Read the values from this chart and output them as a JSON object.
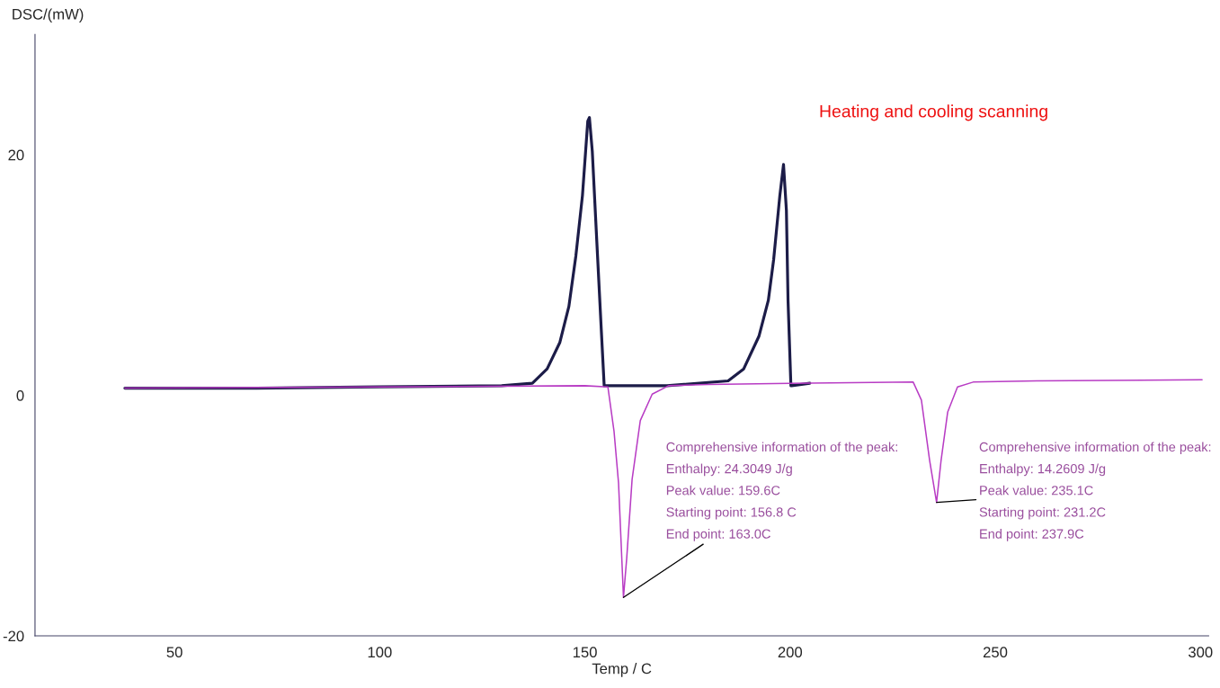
{
  "chart_data": {
    "type": "line",
    "title": "Heating and cooling scanning",
    "xlabel": "Temp / C",
    "ylabel": "DSC/(mW)",
    "xlim": [
      16,
      302
    ],
    "ylim": [
      -20,
      30
    ],
    "xticks": [
      50,
      100,
      150,
      200,
      250,
      300
    ],
    "yticks": [
      -20,
      0,
      20
    ],
    "grid": false,
    "legend": false,
    "marker": "none",
    "line_style": "solid",
    "series": [
      {
        "color": "#1c1c48",
        "x": [
          37.9,
          70,
          100,
          129.7,
          137.2,
          140.8,
          143.9,
          146.1,
          147.8,
          149.4,
          150.7,
          151.1,
          151.8,
          152.9,
          154.0,
          154.7,
          170,
          184.9,
          188.7,
          192.4,
          194.7,
          196.0,
          197.5,
          198.4,
          199.1,
          199.5,
          200.2,
          200.4,
          204.8
        ],
        "values": [
          0.6,
          0.6,
          0.7,
          0.8,
          1.0,
          2.2,
          4.4,
          7.4,
          11.6,
          16.6,
          22.8,
          23.1,
          20.3,
          12.8,
          5.4,
          0.8,
          0.8,
          1.2,
          2.2,
          4.9,
          7.9,
          11.3,
          16.6,
          19.2,
          15.4,
          7.9,
          0.8,
          0.8,
          1.0
        ]
      },
      {
        "color": "#b83cc4",
        "x": [
          37.9,
          100,
          150,
          155.6,
          157.1,
          158.2,
          159.4,
          160.2,
          161.5,
          163.5,
          166.4,
          170.4,
          180,
          200,
          230.0,
          232.0,
          234.0,
          235.7,
          236.8,
          238.4,
          240.8,
          244.6,
          260,
          300.4
        ],
        "values": [
          0.6,
          0.7,
          0.8,
          0.7,
          -3.0,
          -7.3,
          -16.8,
          -13.5,
          -7.0,
          -2.1,
          0.1,
          0.8,
          0.9,
          1.0,
          1.1,
          -0.4,
          -5.4,
          -8.9,
          -5.4,
          -1.4,
          0.7,
          1.1,
          1.2,
          1.3
        ]
      }
    ],
    "annotations": [
      {
        "text": "Comprehensive information of the peak:\nEnthalpy: 24.3049 J/g\nPeak value: 159.6C\nStarting point: 156.8 C\nEnd point: 163.0C",
        "x": 159.4,
        "y": -16.8
      },
      {
        "text": "Comprehensive information of the peak:\nEnthalpy: 14.2609 J/g\nPeak value: 235.1C\nStarting point: 231.2C\nEnd point: 237.9C",
        "x": 235.7,
        "y": -8.9
      }
    ]
  }
}
